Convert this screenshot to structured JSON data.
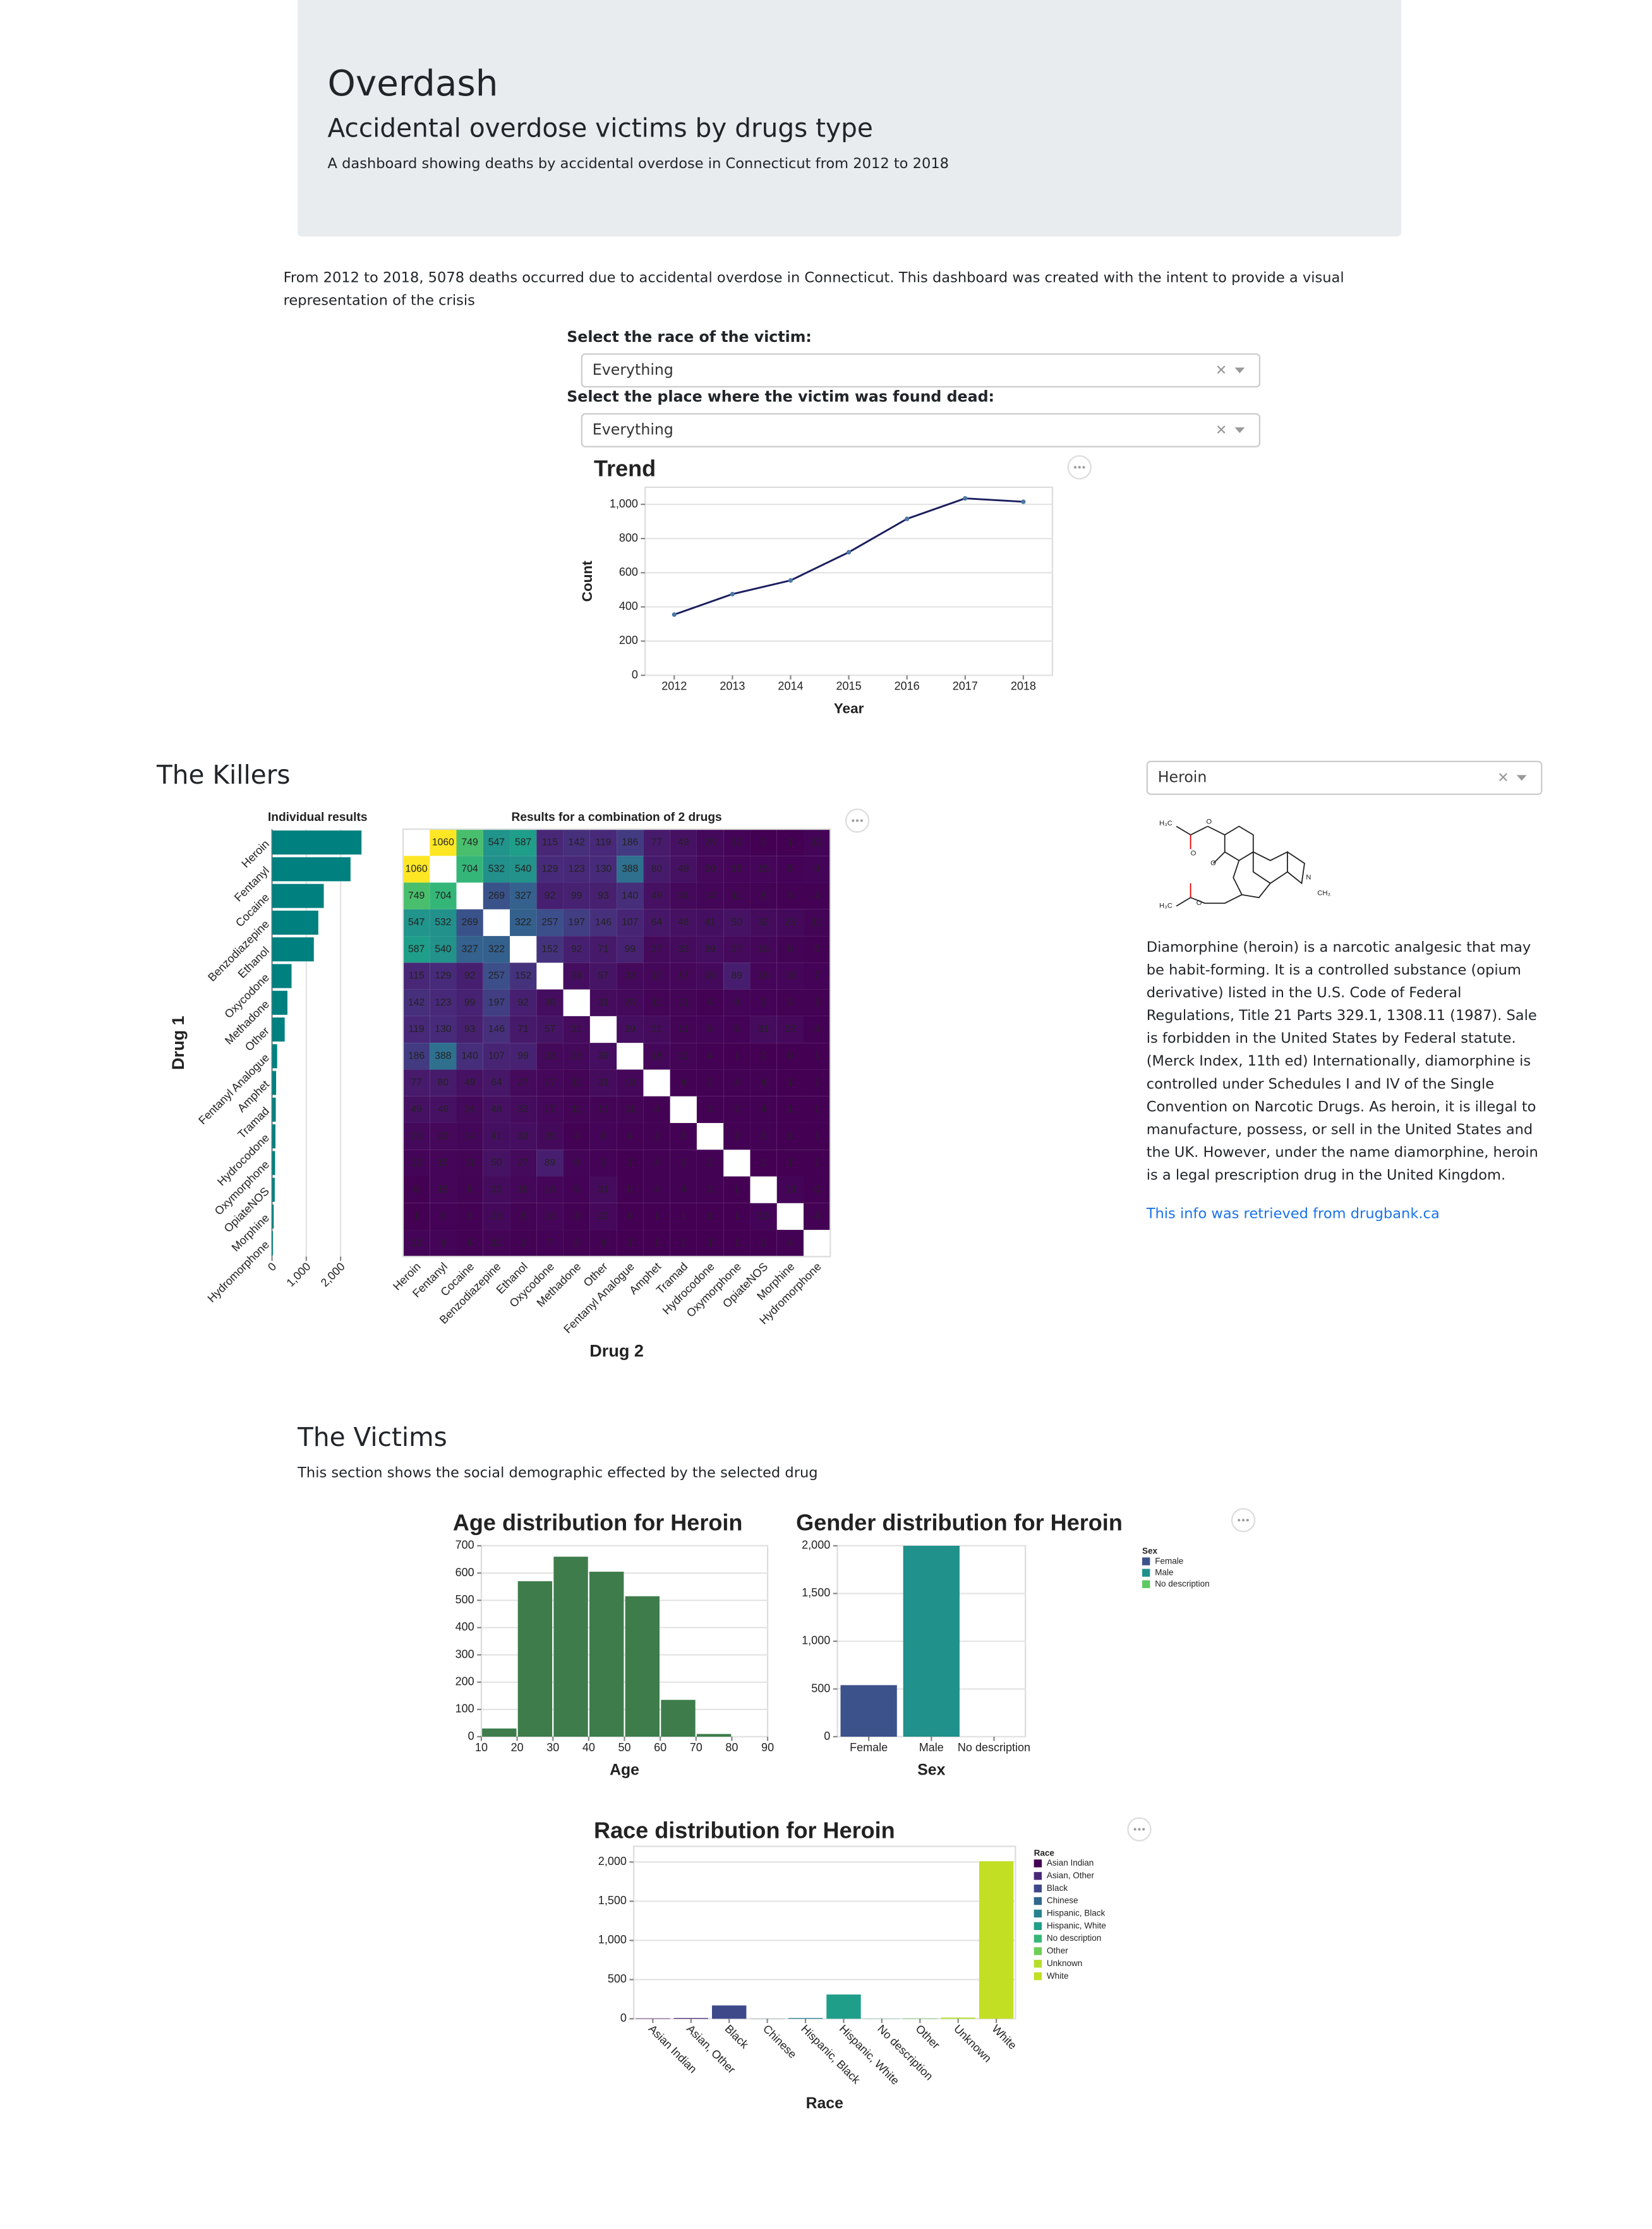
{
  "header": {
    "title": "Overdash",
    "subtitle": "Accidental overdose victims by drugs type",
    "description": "A dashboard showing deaths by accidental overdose in Connecticut from 2012 to 2018"
  },
  "intro": "From 2012 to 2018, 5078 deaths occurred due to accidental overdose in Connecticut. This dashboard was created with the intent to provide a visual representation of the crisis",
  "filters": [
    {
      "label": "Select the race of the victim:",
      "value": "Everything"
    },
    {
      "label": "Select the place where the victim was found dead:",
      "value": "Everything"
    }
  ],
  "killers": {
    "heading": "The Killers",
    "drug_select": "Heroin",
    "structure_labels": [
      "H₃C",
      "O",
      "O",
      "O",
      "N",
      "CH₃",
      "O",
      "H₃C"
    ],
    "description": "Diamorphine (heroin) is a narcotic analgesic that may be habit-forming. It is a controlled substance (opium derivative) listed in the U.S. Code of Federal Regulations, Title 21 Parts 329.1, 1308.11 (1987). Sale is forbidden in the United States by Federal statute. (Merck Index, 11th ed) Internationally, diamorphine is controlled under Schedules I and IV of the Single Convention on Narcotic Drugs. As heroin, it is illegal to manufacture, possess, or sell in the United States and the UK. However, under the name diamorphine, heroin is a legal prescription drug in the United Kingdom.",
    "link": "This info was retrieved from drugbank.ca"
  },
  "victims": {
    "heading": "The Victims",
    "description": "This section shows the social demographic effected by the selected drug"
  },
  "chart_data": [
    {
      "type": "line",
      "title": "Trend",
      "x_label": "Year",
      "y_label": "Count",
      "categories": [
        "2012",
        "2013",
        "2014",
        "2015",
        "2016",
        "2017",
        "2018"
      ],
      "values": [
        355,
        475,
        555,
        720,
        915,
        1035,
        1015
      ],
      "color": "#1b1f5e",
      "point_color": "#4c78a8",
      "ylim": [
        0,
        1100
      ],
      "yticks": [
        0,
        200,
        400,
        600,
        800,
        {
          "value": 1000,
          "label": "1,000"
        }
      ],
      "grid": true
    },
    {
      "type": "hbar",
      "title": "Individual results",
      "y_label": "Drug 1",
      "categories": [
        "Heroin",
        "Fentanyl",
        "Cocaine",
        "Benzodiazepine",
        "Ethanol",
        "Oxycodone",
        "Methadone",
        "Other",
        "Fentanyl Analogue",
        "Amphet",
        "Tramad",
        "Hydrocodone",
        "Oxymorphone",
        "OpiateNOS",
        "Morphine",
        "Hydromorphone"
      ],
      "values": [
        2610,
        2290,
        1510,
        1350,
        1220,
        570,
        450,
        370,
        150,
        120,
        110,
        100,
        90,
        80,
        50,
        30
      ],
      "color": "#00807f",
      "xlim": [
        0,
        2700
      ],
      "xticks": [
        0,
        {
          "value": 1000,
          "label": "1,000"
        },
        {
          "value": 2000,
          "label": "2,000"
        }
      ],
      "grid": true
    },
    {
      "type": "heatmap",
      "title": "Results for a combination of 2 drugs",
      "x_label": "Drug 2",
      "color_scheme": "viridis",
      "x_categories": [
        "Heroin",
        "Fentanyl",
        "Cocaine",
        "Benzodiazepine",
        "Ethanol",
        "Oxycodone",
        "Methadone",
        "Other",
        "Fentanyl Analogue",
        "Amphet",
        "Tramad",
        "Hydrocodone",
        "Oxymorphone",
        "OpiateNOS",
        "Morphine",
        "Hydromorphone"
      ],
      "values": [
        [
          null,
          1060,
          749,
          547,
          587,
          115,
          142,
          119,
          186,
          77,
          49,
          25,
          12,
          0,
          1,
          12
        ],
        [
          1060,
          null,
          704,
          532,
          540,
          129,
          123,
          130,
          388,
          80,
          49,
          20,
          15,
          15,
          5,
          9
        ],
        [
          749,
          704,
          null,
          269,
          327,
          92,
          99,
          93,
          140,
          49,
          24,
          14,
          11,
          8,
          3,
          4
        ],
        [
          547,
          532,
          269,
          null,
          322,
          257,
          197,
          146,
          107,
          64,
          48,
          41,
          50,
          32,
          25,
          11
        ],
        [
          587,
          540,
          327,
          322,
          null,
          152,
          92,
          71,
          99,
          27,
          33,
          39,
          27,
          18,
          8,
          2
        ],
        [
          115,
          129,
          92,
          257,
          152,
          null,
          36,
          57,
          23,
          17,
          17,
          25,
          89,
          16,
          16,
          7
        ],
        [
          142,
          123,
          99,
          197,
          92,
          36,
          null,
          31,
          25,
          11,
          11,
          4,
          9,
          5,
          3,
          2
        ],
        [
          119,
          130,
          93,
          146,
          71,
          57,
          31,
          null,
          39,
          31,
          11,
          9,
          5,
          31,
          22,
          4
        ],
        [
          186,
          388,
          140,
          107,
          99,
          23,
          25,
          39,
          null,
          18,
          11,
          4,
          1,
          0,
          0,
          1
        ],
        [
          77,
          80,
          49,
          64,
          27,
          17,
          11,
          31,
          18,
          null,
          4,
          2,
          4,
          4,
          1,
          1
        ],
        [
          49,
          49,
          24,
          48,
          33,
          17,
          11,
          11,
          11,
          4,
          null,
          3,
          2,
          4,
          1,
          1
        ],
        [
          25,
          20,
          14,
          41,
          39,
          25,
          4,
          9,
          4,
          2,
          3,
          null,
          2,
          3,
          1,
          1
        ],
        [
          12,
          15,
          11,
          50,
          27,
          89,
          9,
          5,
          1,
          4,
          2,
          2,
          null,
          1,
          1,
          1
        ],
        [
          0,
          15,
          8,
          32,
          18,
          16,
          5,
          31,
          0,
          4,
          4,
          3,
          1,
          null,
          13,
          0
        ],
        [
          1,
          5,
          3,
          25,
          8,
          16,
          3,
          22,
          0,
          1,
          1,
          1,
          1,
          13,
          null,
          4
        ],
        [
          12,
          9,
          4,
          11,
          2,
          7,
          2,
          4,
          1,
          1,
          1,
          1,
          1,
          0,
          4,
          null
        ]
      ]
    },
    {
      "type": "histogram",
      "title": "Age distribution for Heroin",
      "x_label": "Age",
      "bins": [
        10,
        20,
        30,
        40,
        50,
        60,
        70,
        80,
        90
      ],
      "values": [
        30,
        570,
        660,
        605,
        515,
        135,
        10,
        0
      ],
      "color": "#3e7d4b",
      "xlim": [
        10,
        90
      ],
      "xticks": [
        10,
        20,
        30,
        40,
        50,
        60,
        70,
        80,
        90
      ],
      "ylim": [
        0,
        700
      ],
      "yticks": [
        0,
        100,
        200,
        300,
        400,
        500,
        600,
        700
      ],
      "grid": true
    },
    {
      "type": "bar",
      "title": "Gender distribution for Heroin",
      "x_label": "Sex",
      "legend_title": "Sex",
      "categories": [
        "Female",
        "Male",
        "No description"
      ],
      "values": [
        540,
        2000,
        0
      ],
      "colors": [
        "#3b528b",
        "#21918c",
        "#5ec962"
      ],
      "ylim": [
        0,
        2000
      ],
      "yticks": [
        0,
        500,
        {
          "value": 1000,
          "label": "1,000"
        },
        {
          "value": 1500,
          "label": "1,500"
        },
        {
          "value": 2000,
          "label": "2,000"
        }
      ],
      "grid": true
    },
    {
      "type": "bar",
      "title": "Race distribution for Heroin",
      "x_label": "Race",
      "legend_title": "Race",
      "x_label_rotation": 45,
      "categories": [
        "Asian Indian",
        "Asian, Other",
        "Black",
        "Chinese",
        "Hispanic, Black",
        "Hispanic, White",
        "No description",
        "Other",
        "Unknown",
        "White"
      ],
      "values": [
        5,
        10,
        170,
        2,
        10,
        310,
        2,
        5,
        15,
        2010
      ],
      "colors": [
        "#440154",
        "#482878",
        "#3e4989",
        "#31688e",
        "#26828e",
        "#1f9e89",
        "#35b779",
        "#6ece58",
        "#b5de2b",
        "#c2df23"
      ],
      "ylim": [
        0,
        2200
      ],
      "yticks": [
        0,
        500,
        {
          "value": 1000,
          "label": "1,000"
        },
        {
          "value": 1500,
          "label": "1,500"
        },
        {
          "value": 2000,
          "label": "2,000"
        }
      ],
      "grid": true
    }
  ]
}
